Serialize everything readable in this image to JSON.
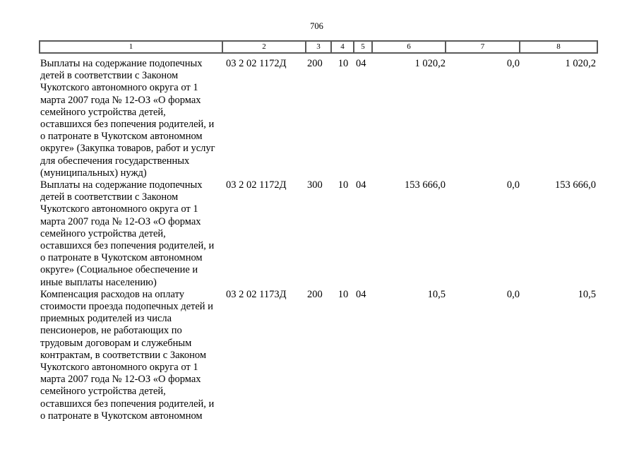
{
  "page": {
    "number": "706"
  },
  "table": {
    "header": [
      "1",
      "2",
      "3",
      "4",
      "5",
      "6",
      "7",
      "8"
    ],
    "rows": [
      [
        "Выплаты на содержание подопечных\nдетей в соответствии с Законом\nЧукотского автономного округа от 1\nмарта 2007 года № 12-ОЗ «О формах\nсемейного устройства детей,\nоставшихся без попечения родителей, и\nо патронате в Чукотском автономном\nокруге» (Закупка товаров, работ и услуг\nдля обеспечения государственных\n(муниципальных) нужд)",
        "03 2 02 1172Д",
        "200",
        "10",
        "04",
        "1 020,2",
        "0,0",
        "1 020,2"
      ],
      [
        "Выплаты на содержание подопечных\nдетей в соответствии с Законом\nЧукотского автономного округа от 1\nмарта 2007 года № 12-ОЗ «О формах\nсемейного устройства детей,\nоставшихся без попечения родителей, и\nо патронате в Чукотском автономном\nокруге» (Социальное обеспечение и\nиные выплаты населению)",
        "03 2 02 1172Д",
        "300",
        "10",
        "04",
        "153 666,0",
        "0,0",
        "153 666,0"
      ],
      [
        "Компенсация расходов на оплату\nстоимости проезда подопечных детей и\nприемных родителей из числа\nпенсионеров, не работающих по\nтрудовым договорам и служебным\nконтрактам, в соответствии с Законом\nЧукотского автономного округа от 1\nмарта 2007 года № 12-ОЗ «О формах\nсемейного устройства детей,\nоставшихся без попечения родителей, и\nо патронате в Чукотском автономном",
        "03 2 02 1173Д",
        "200",
        "10",
        "04",
        "10,5",
        "0,0",
        "10,5"
      ]
    ]
  }
}
